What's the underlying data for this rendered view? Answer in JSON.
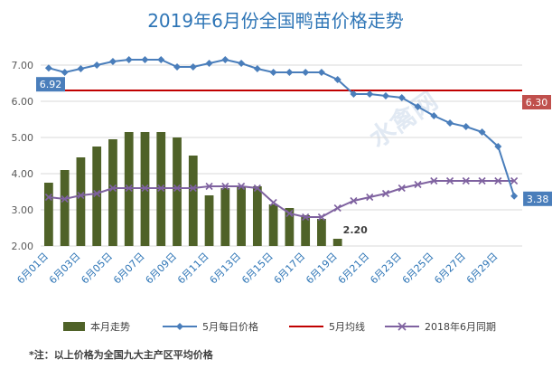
{
  "chart_data": {
    "type": "bar+line",
    "title": "2019年6月份全国鸭苗价格走势",
    "note": "*注：以上价格为全国九大主产区平均价格",
    "watermark": "水禽网",
    "ylim": [
      2.0,
      7.5
    ],
    "yticks": [
      "2.00",
      "3.00",
      "4.00",
      "5.00",
      "6.00",
      "7.00"
    ],
    "ytick_values": [
      2,
      3,
      4,
      5,
      6,
      7
    ],
    "days": 30,
    "xtick_labels": [
      "6月01日",
      "6月03日",
      "6月05日",
      "6月07日",
      "6月09日",
      "6月11日",
      "6月13日",
      "6月15日",
      "6月17日",
      "6月19日",
      "6月21日",
      "6月23日",
      "6月25日",
      "6月27日",
      "6月29日"
    ],
    "xtick_days": [
      1,
      3,
      5,
      7,
      9,
      11,
      13,
      15,
      17,
      19,
      21,
      23,
      25,
      27,
      29
    ],
    "series": [
      {
        "name": "本月走势",
        "kind": "bar",
        "color": "#4f6228",
        "values": [
          3.75,
          4.1,
          4.45,
          4.75,
          4.95,
          5.15,
          5.15,
          5.15,
          5.0,
          4.5,
          3.4,
          3.6,
          3.65,
          3.65,
          3.15,
          3.05,
          2.85,
          2.75,
          2.2
        ]
      },
      {
        "name": "5月每日价格",
        "kind": "line",
        "color": "#4a7ebb",
        "values": [
          6.92,
          6.8,
          6.9,
          7.0,
          7.1,
          7.15,
          7.15,
          7.15,
          6.95,
          6.95,
          7.05,
          7.15,
          7.05,
          6.9,
          6.8,
          6.8,
          6.8,
          6.8,
          6.6,
          6.2,
          6.2,
          6.15,
          6.1,
          5.85,
          5.6,
          5.4,
          5.3,
          5.15,
          4.75,
          3.38
        ]
      },
      {
        "name": "5月均线",
        "kind": "hline",
        "color": "#c00000",
        "value": 6.3
      },
      {
        "name": "2018年6月同期",
        "kind": "line",
        "color": "#7f62a0",
        "values": [
          3.35,
          3.3,
          3.4,
          3.45,
          3.6,
          3.6,
          3.6,
          3.6,
          3.6,
          3.6,
          3.65,
          3.65,
          3.65,
          3.6,
          3.2,
          2.9,
          2.8,
          2.8,
          3.05,
          3.25,
          3.35,
          3.45,
          3.6,
          3.7,
          3.8,
          3.8,
          3.8,
          3.8,
          3.8,
          3.8
        ]
      }
    ],
    "labels": {
      "first_may": "6.92",
      "may_avg": "6.30",
      "last_may": "3.38",
      "last_bar": "2.20"
    },
    "label_colors": {
      "first_may": "#4a7ebb",
      "may_avg": "#c0504d",
      "last_may": "#4a7ebb"
    }
  }
}
